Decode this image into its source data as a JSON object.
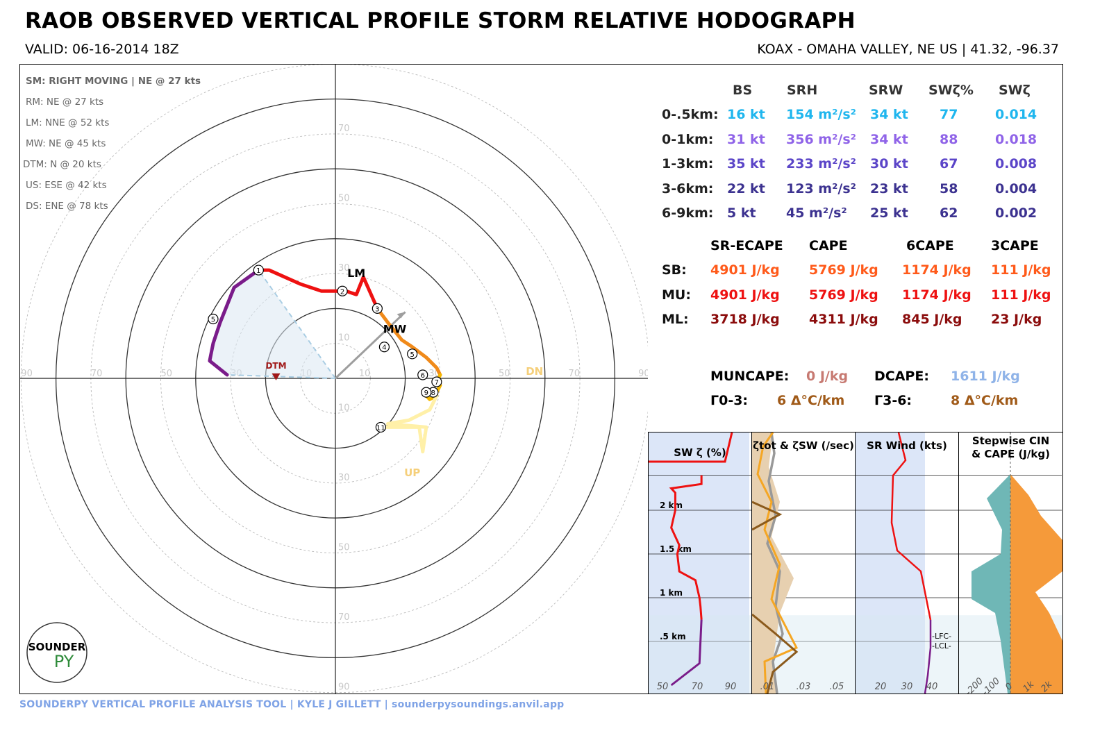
{
  "header": {
    "title": "RAOB OBSERVED VERTICAL PROFILE STORM RELATIVE HODOGRAPH",
    "valid": "VALID: 06-16-2014 18Z",
    "station": "KOAX - OMAHA VALLEY, NE US | 41.32, -96.37"
  },
  "motions": {
    "sm": "SM: RIGHT MOVING | NE @ 27 kts",
    "rm": "RM: NE @ 27 kts",
    "lm": "LM: NNE @ 52 kts",
    "mw": "MW: NE @ 45 kts",
    "dtm": "DTM: N @ 20 kts",
    "us": "US: ESE @ 42 kts",
    "ds": "DS: ENE @ 78 kts"
  },
  "logo": {
    "text1": "SOUNDER",
    "text2": "PY"
  },
  "footer": "SOUNDERPY VERTICAL PROFILE ANALYSIS TOOL | KYLE J GILLETT | sounderpysoundings.anvil.app",
  "kinematics": {
    "headers": [
      "BS",
      "SRH",
      "SRW",
      "SWζ%",
      "SWζ"
    ],
    "rows": [
      {
        "label": "0-.5km:",
        "color": "#1fb6ee",
        "values": [
          "16 kt",
          "154 m²/s²",
          "34 kt",
          "77",
          "0.014"
        ]
      },
      {
        "label": "0-1km:",
        "color": "#8f63e8",
        "values": [
          "31 kt",
          "356 m²/s²",
          "34 kt",
          "88",
          "0.018"
        ]
      },
      {
        "label": "1-3km:",
        "color": "#5b45c8",
        "values": [
          "35 kt",
          "233 m²/s²",
          "30 kt",
          "67",
          "0.008"
        ]
      },
      {
        "label": "3-6km:",
        "color": "#3c3290",
        "values": [
          "22 kt",
          "123 m²/s²",
          "23 kt",
          "58",
          "0.004"
        ]
      },
      {
        "label": "6-9km:",
        "color": "#3c3290",
        "values": [
          "5 kt",
          "45 m²/s²",
          "25 kt",
          "62",
          "0.002"
        ]
      }
    ]
  },
  "thermo": {
    "headers": [
      "SR-ECAPE",
      "CAPE",
      "6CAPE",
      "3CAPE"
    ],
    "rows": [
      {
        "label": "SB:",
        "color": "#ff5a1a",
        "values": [
          "4901 J/kg",
          "5769 J/kg",
          "1174 J/kg",
          "111 J/kg"
        ]
      },
      {
        "label": "MU:",
        "color": "#ee1111",
        "values": [
          "4901 J/kg",
          "5769 J/kg",
          "1174 J/kg",
          "111 J/kg"
        ]
      },
      {
        "label": "ML:",
        "color": "#8b0c0c",
        "values": [
          "3718 J/kg",
          "4311 J/kg",
          "845 J/kg",
          "23 J/kg"
        ]
      }
    ],
    "muncape_label": "MUNCAPE:",
    "muncape_value": "0 J/kg",
    "dcape_label": "DCAPE:",
    "dcape_value": "1611 J/kg",
    "lr03_label": "Γ0-3:",
    "lr03_value": "6 Δ°C/km",
    "lr36_label": "Γ3-6:",
    "lr36_value": "8 Δ°C/km"
  },
  "colors": {
    "bs_0_05": "#1fb6ee",
    "bs_0_1": "#8f63e8",
    "bs_1_3": "#5b45c8",
    "bs_3_9": "#3c3290",
    "sb": "#ff5a1a",
    "mu": "#ee1111",
    "ml": "#8b0c0c",
    "muncape": "#c77a72",
    "dcape": "#8fb3e8",
    "lapse": "#a05a18",
    "hodo_0_1": "#ee1111",
    "hodo_1_3": "#f08a1a",
    "hodo_3_6": "#f5b800",
    "hodo_6_9": "#f8e08a",
    "hodo_9_12": "#fff0a8",
    "hodo_purple": "#7a1c8a"
  },
  "chart_data": [
    {
      "type": "line",
      "title": "",
      "axes": {
        "ring_labels": [
          10,
          30,
          50,
          70,
          90
        ],
        "rings_kts": [
          10,
          20,
          30,
          40,
          50,
          60,
          70,
          80,
          90
        ]
      },
      "storm_motion": "RIGHT MOVING",
      "series": [
        {
          "name": "",
          "color": "hodo_purple",
          "points": [
            [
              -31,
              1
            ],
            [
              -36,
              5
            ],
            [
              -35,
              10
            ],
            [
              -33,
              16
            ],
            [
              -29,
              26
            ],
            [
              -22,
              31
            ]
          ]
        },
        {
          "name": "",
          "color": "hodo_0_1",
          "points": [
            [
              -22,
              31
            ],
            [
              -19,
              31
            ],
            [
              -10,
              27
            ],
            [
              -4,
              25
            ],
            [
              3,
              25
            ],
            [
              6,
              24
            ],
            [
              8,
              29
            ],
            [
              12,
              20
            ]
          ]
        },
        {
          "name": "",
          "color": "hodo_1_3",
          "points": [
            [
              12,
              20
            ],
            [
              15,
              16
            ],
            [
              19,
              11
            ],
            [
              22,
              9
            ],
            [
              26,
              6
            ],
            [
              29,
              3
            ],
            [
              30,
              1
            ]
          ]
        },
        {
          "name": "",
          "color": "hodo_3_6",
          "points": [
            [
              30,
              1
            ],
            [
              29,
              -1
            ],
            [
              30,
              -2
            ],
            [
              29,
              -4
            ],
            [
              26,
              -5
            ],
            [
              27,
              -6
            ],
            [
              29,
              -5
            ]
          ]
        },
        {
          "name": "",
          "color": "hodo_9_12",
          "points": [
            [
              29,
              -5
            ],
            [
              27,
              -9
            ],
            [
              21,
              -12
            ],
            [
              15,
              -13
            ],
            [
              26,
              -14
            ],
            [
              25,
              -21
            ],
            [
              24,
              -14
            ],
            [
              13,
              -14
            ]
          ]
        }
      ],
      "height_labels": [
        {
          "label": "1",
          "x": -22,
          "y": 31
        },
        {
          "label": "2",
          "x": 2,
          "y": 25
        },
        {
          "label": "3",
          "x": 12,
          "y": 20
        },
        {
          "label": "4",
          "x": 14,
          "y": 9
        },
        {
          "label": "5",
          "x": 22,
          "y": 7
        },
        {
          "label": "5",
          "x": -35,
          "y": 17
        },
        {
          "label": "6",
          "x": 25,
          "y": 1
        },
        {
          "label": "7",
          "x": 29,
          "y": -1
        },
        {
          "label": "8",
          "x": 28,
          "y": -4
        },
        {
          "label": "9",
          "x": 26,
          "y": -4
        },
        {
          "label": "11",
          "x": 13,
          "y": -14
        }
      ],
      "markers": [
        {
          "label": "LM",
          "x": 6,
          "y": 29
        },
        {
          "label": "MW",
          "x": 17,
          "y": 13
        },
        {
          "label": "DTM",
          "x": -17,
          "y": 3
        },
        {
          "label": "DN",
          "x": 57,
          "y": 1
        },
        {
          "label": "UP",
          "x": 22,
          "y": -28
        }
      ],
      "shear_vector": {
        "from": [
          0,
          0
        ],
        "to": [
          20,
          19
        ]
      }
    },
    {
      "type": "line",
      "title": "SW ζ (%)",
      "xticks": [
        50,
        70,
        90
      ],
      "yticks": [
        ".5 km",
        "1 km",
        "1.5 km",
        "2 km"
      ],
      "series": [
        {
          "name": "",
          "x": [
            62,
            90,
            91,
            92,
            91,
            90,
            86,
            70,
            68,
            70,
            62,
            66,
            66,
            62,
            92,
            92
          ],
          "y": [
            0,
            0.25,
            0.5,
            0.75,
            0.9,
            1.0,
            1.2,
            1.3,
            1.5,
            1.6,
            1.8,
            2.0,
            2.2,
            2.25,
            2.3,
            2.4
          ]
        }
      ]
    },
    {
      "type": "line",
      "title": "ζtot & ζSW (/sec)",
      "xticks": [
        ".01",
        ".03",
        ".05"
      ]
    },
    {
      "type": "line",
      "title": "SR Wind (kts)",
      "xticks": [
        20,
        30,
        40
      ],
      "annotations": [
        "-LFC-",
        "-LCL-"
      ]
    },
    {
      "type": "area",
      "title": "Stepwise CIN & CAPE (J/kg)",
      "xticks": [
        "-200",
        "-100",
        "0",
        "1k",
        "2k"
      ]
    }
  ]
}
